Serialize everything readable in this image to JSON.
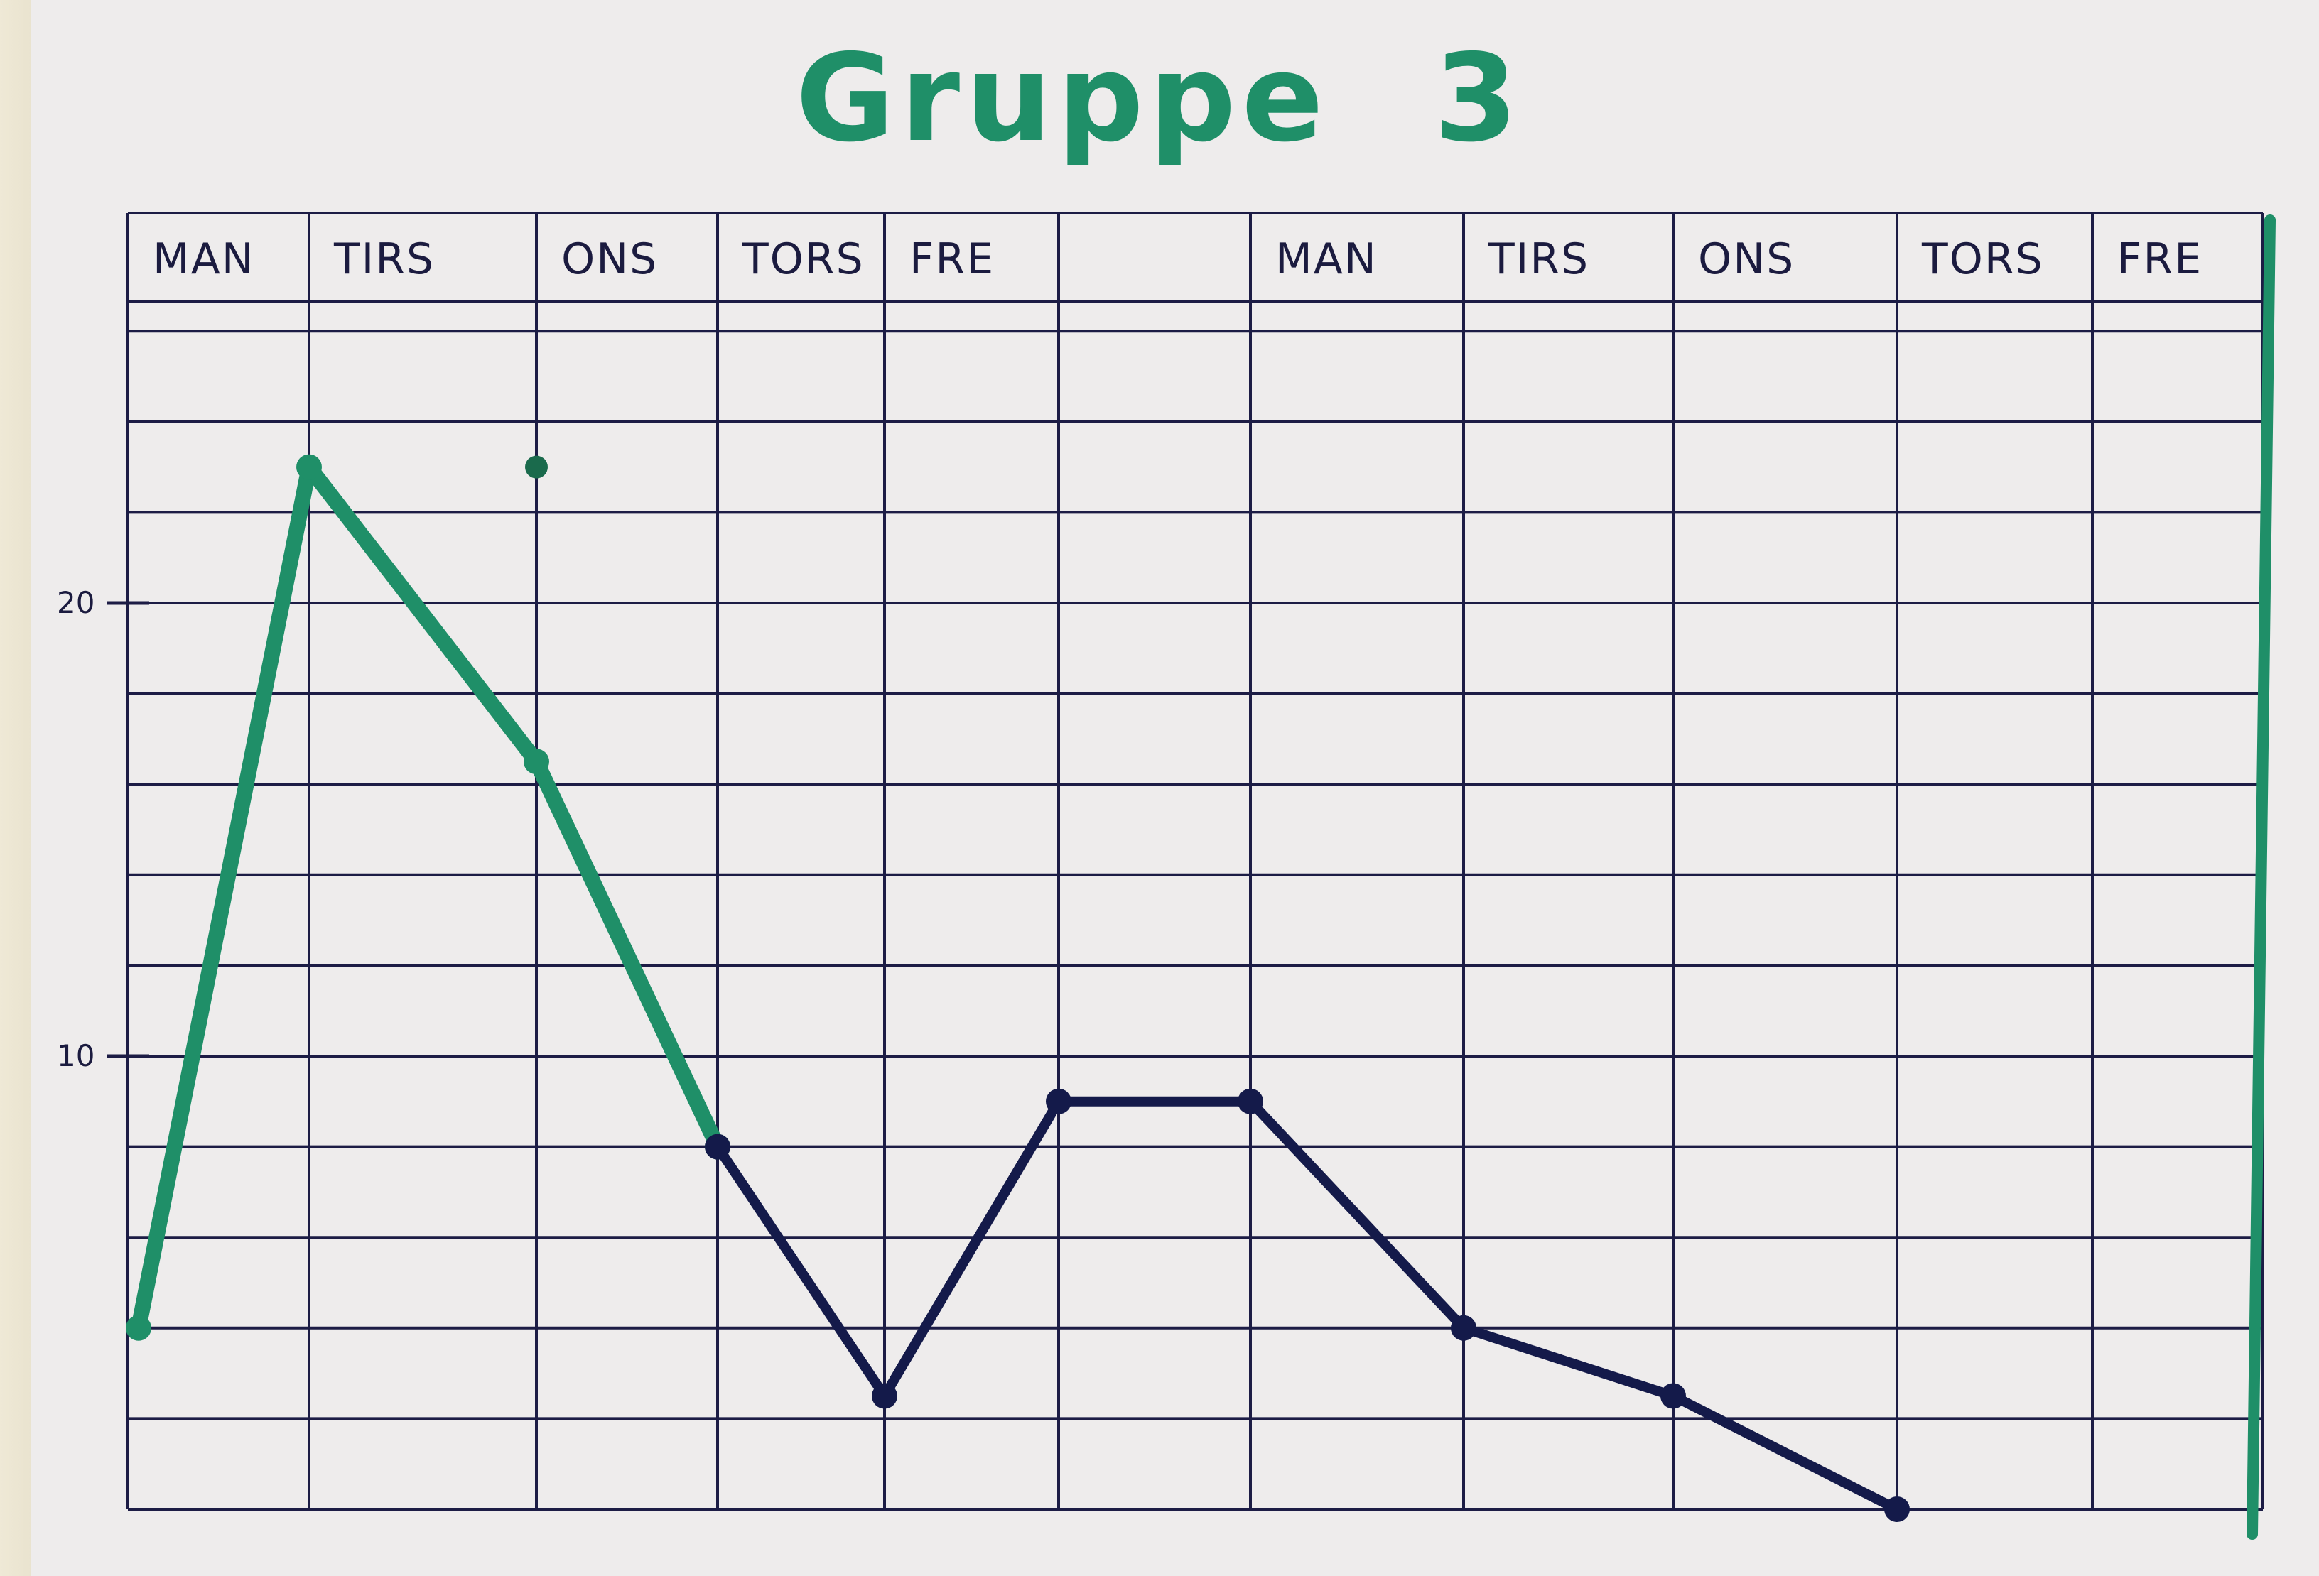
{
  "chart_data": {
    "type": "line",
    "title": "Gruppe 3",
    "categories": [
      "MAN",
      "TIRS",
      "ONS",
      "TORS",
      "FRE",
      "",
      "MAN",
      "TIRS",
      "ONS",
      "TORS",
      "FRE"
    ],
    "ylim": [
      0,
      30
    ],
    "yticks": [
      "20",
      "10"
    ],
    "grid": true,
    "series": [
      {
        "color": "#1f8f68",
        "points": [
          [
            0,
            4
          ],
          [
            1,
            23
          ],
          [
            2,
            16.5
          ],
          [
            3,
            8
          ]
        ]
      },
      {
        "color": "#141a4a",
        "points": [
          [
            3,
            8
          ],
          [
            4,
            2.5
          ],
          [
            5,
            9
          ],
          [
            6,
            9
          ],
          [
            7,
            4
          ],
          [
            8,
            2.5
          ],
          [
            9,
            0
          ]
        ]
      }
    ],
    "extra_point": {
      "x": 2,
      "y": 23,
      "color": "#1a6a4c"
    },
    "colors": {
      "ink": "#1c1c45",
      "green": "#1f8f68",
      "navy": "#141a4a",
      "paper": "#eeecec"
    }
  }
}
